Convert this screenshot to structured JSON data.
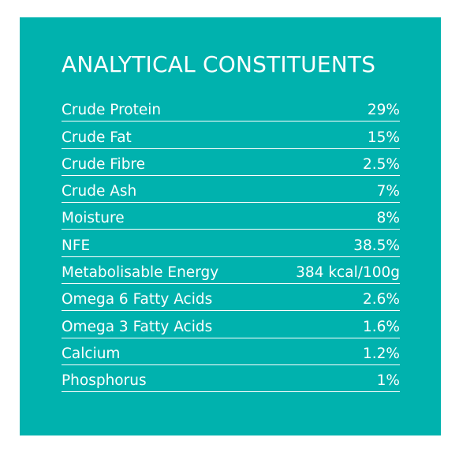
{
  "title": "ANALYTICAL CONSTITUENTS",
  "colors": {
    "panel_background": "#00b2ae",
    "text": "#ffffff"
  },
  "constituents": [
    {
      "label": "Crude Protein",
      "value": "29%"
    },
    {
      "label": "Crude Fat",
      "value": "15%"
    },
    {
      "label": "Crude Fibre",
      "value": "2.5%"
    },
    {
      "label": "Crude Ash",
      "value": "7%"
    },
    {
      "label": "Moisture",
      "value": "8%"
    },
    {
      "label": "NFE",
      "value": "38.5%"
    },
    {
      "label": "Metabolisable Energy",
      "value": "384 kcal/100g"
    },
    {
      "label": "Omega 6 Fatty Acids",
      "value": "2.6%"
    },
    {
      "label": "Omega 3 Fatty Acids",
      "value": "1.6%"
    },
    {
      "label": "Calcium",
      "value": "1.2%"
    },
    {
      "label": "Phosphorus",
      "value": "1%"
    }
  ]
}
